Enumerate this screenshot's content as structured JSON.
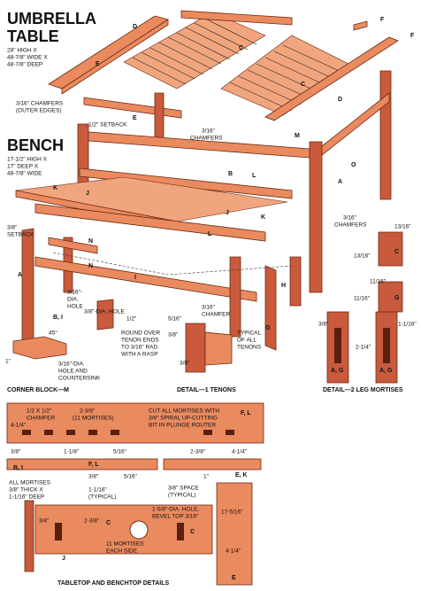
{
  "labels": [
    "UMBRELLA",
    "TABLE",
    "28\" HIGH X",
    "48-7/8\" WIDE X",
    "48-7/8\" DEEP",
    "BENCH",
    "17-1/2\" HIGH X",
    "17\" DEEP X",
    "48-7/8\" WIDE",
    "3/16\" CHAMFERS",
    "(OUTER EDGES)",
    "1/2\" SETBACK",
    "3/16\"",
    "CHAMFERS",
    "3/8\"",
    "SETBACK",
    "3/16\"",
    "CHAMFERS",
    "3/16\"-",
    "DIA.",
    "HOLE",
    "B, I",
    "1/2\"",
    "3/8\"-DIA. HOLE",
    "45°",
    "1\"",
    "3/16\"-DIA.",
    "HOLE AND",
    "COUNTERSINK",
    "CORNER BLOCK—M",
    "ROUND OVER",
    "TENON ENDS",
    "TO 3/16\" RAD.",
    "WITH A RASP",
    "TYPICAL",
    "OF ALL",
    "TENONS",
    "DETAIL—1 TENONS",
    "3/16\"",
    "CHAMFER",
    "DETAIL—2 LEG MORTISES",
    "1/2 X 1/2\"",
    "CHAMFER",
    "2-3/8\"",
    "(11 MORTISES)",
    "CUT ALL MORTISES WITH",
    "3/8\" SPIRAL UP-CUTTING",
    "BIT IN PLUNGE ROUTER",
    "ALL MORTISES",
    "3/8\" THICK X",
    "1-1/16\" DEEP",
    "1-1/16\"",
    "(TYPICAL)",
    "3/8\" SPACE",
    "(TYPICAL)",
    "1-5/8\"-DIA. HOLE,",
    "BEVEL TOP 3/16\"",
    "11 MORTISES",
    "EACH SIDE",
    "TABLETOP AND BENCHTOP DETAILS",
    "17-5/16\"",
    "4-1/4\"",
    "2-3/8\"",
    "3/4\"",
    "13/16\"",
    "13/16\"",
    "11/16\"",
    "11/16\"",
    "3/8\"",
    "2-1/4\"",
    "1-1/16\"",
    "5/16\"",
    "3/8\"",
    "3/8\"",
    "4-1/4\"",
    "3/8\"",
    "1-1/8\"",
    "5/16\"",
    "3/8\"",
    "5/16\"",
    "2-3/8\"",
    "4-1/4\"",
    "1\""
  ],
  "part_labels": [
    "D",
    "E",
    "C",
    "C",
    "D",
    "F",
    "F",
    "E",
    "M",
    "L",
    "B",
    "A",
    "O",
    "K",
    "J",
    "J",
    "K",
    "L",
    "N",
    "N",
    "I",
    "H",
    "G",
    "A",
    "C",
    "G",
    "A, G",
    "A, G",
    "F, L",
    "F, L",
    "E, K",
    "E",
    "C",
    "C",
    "J",
    "B, I"
  ]
}
